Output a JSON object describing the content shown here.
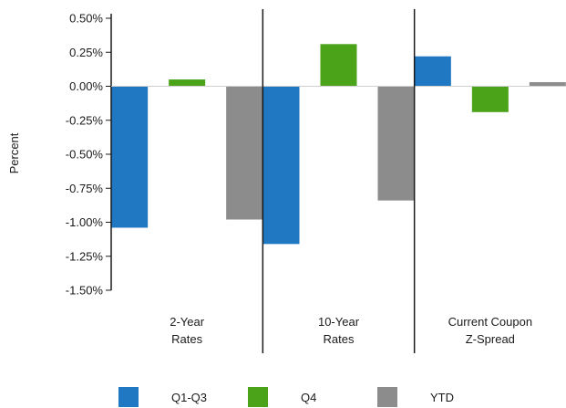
{
  "chart_data": {
    "type": "bar",
    "ylabel": "Percent",
    "ylim": [
      -1.5,
      0.5
    ],
    "yticks": [
      "0.50%",
      "0.25%",
      "0.00%",
      "-0.25%",
      "-0.50%",
      "-0.75%",
      "-1.00%",
      "-1.25%",
      "-1.50%"
    ],
    "ytick_values": [
      0.5,
      0.25,
      0.0,
      -0.25,
      -0.5,
      -0.75,
      -1.0,
      -1.25,
      -1.5
    ],
    "categories": [
      [
        "2-Year",
        "Rates"
      ],
      [
        "10-Year",
        "Rates"
      ],
      [
        "Current Coupon",
        "Z-Spread"
      ]
    ],
    "series": [
      {
        "name": "Q1-Q3",
        "color": "#1f78c1",
        "values": [
          -1.04,
          -1.16,
          0.22
        ]
      },
      {
        "name": "Q4",
        "color": "#4aa318",
        "values": [
          0.05,
          0.31,
          -0.19
        ]
      },
      {
        "name": "YTD",
        "color": "#8c8c8c",
        "values": [
          -0.98,
          -0.84,
          0.03
        ]
      }
    ],
    "legend_position": "bottom",
    "grid": false
  }
}
